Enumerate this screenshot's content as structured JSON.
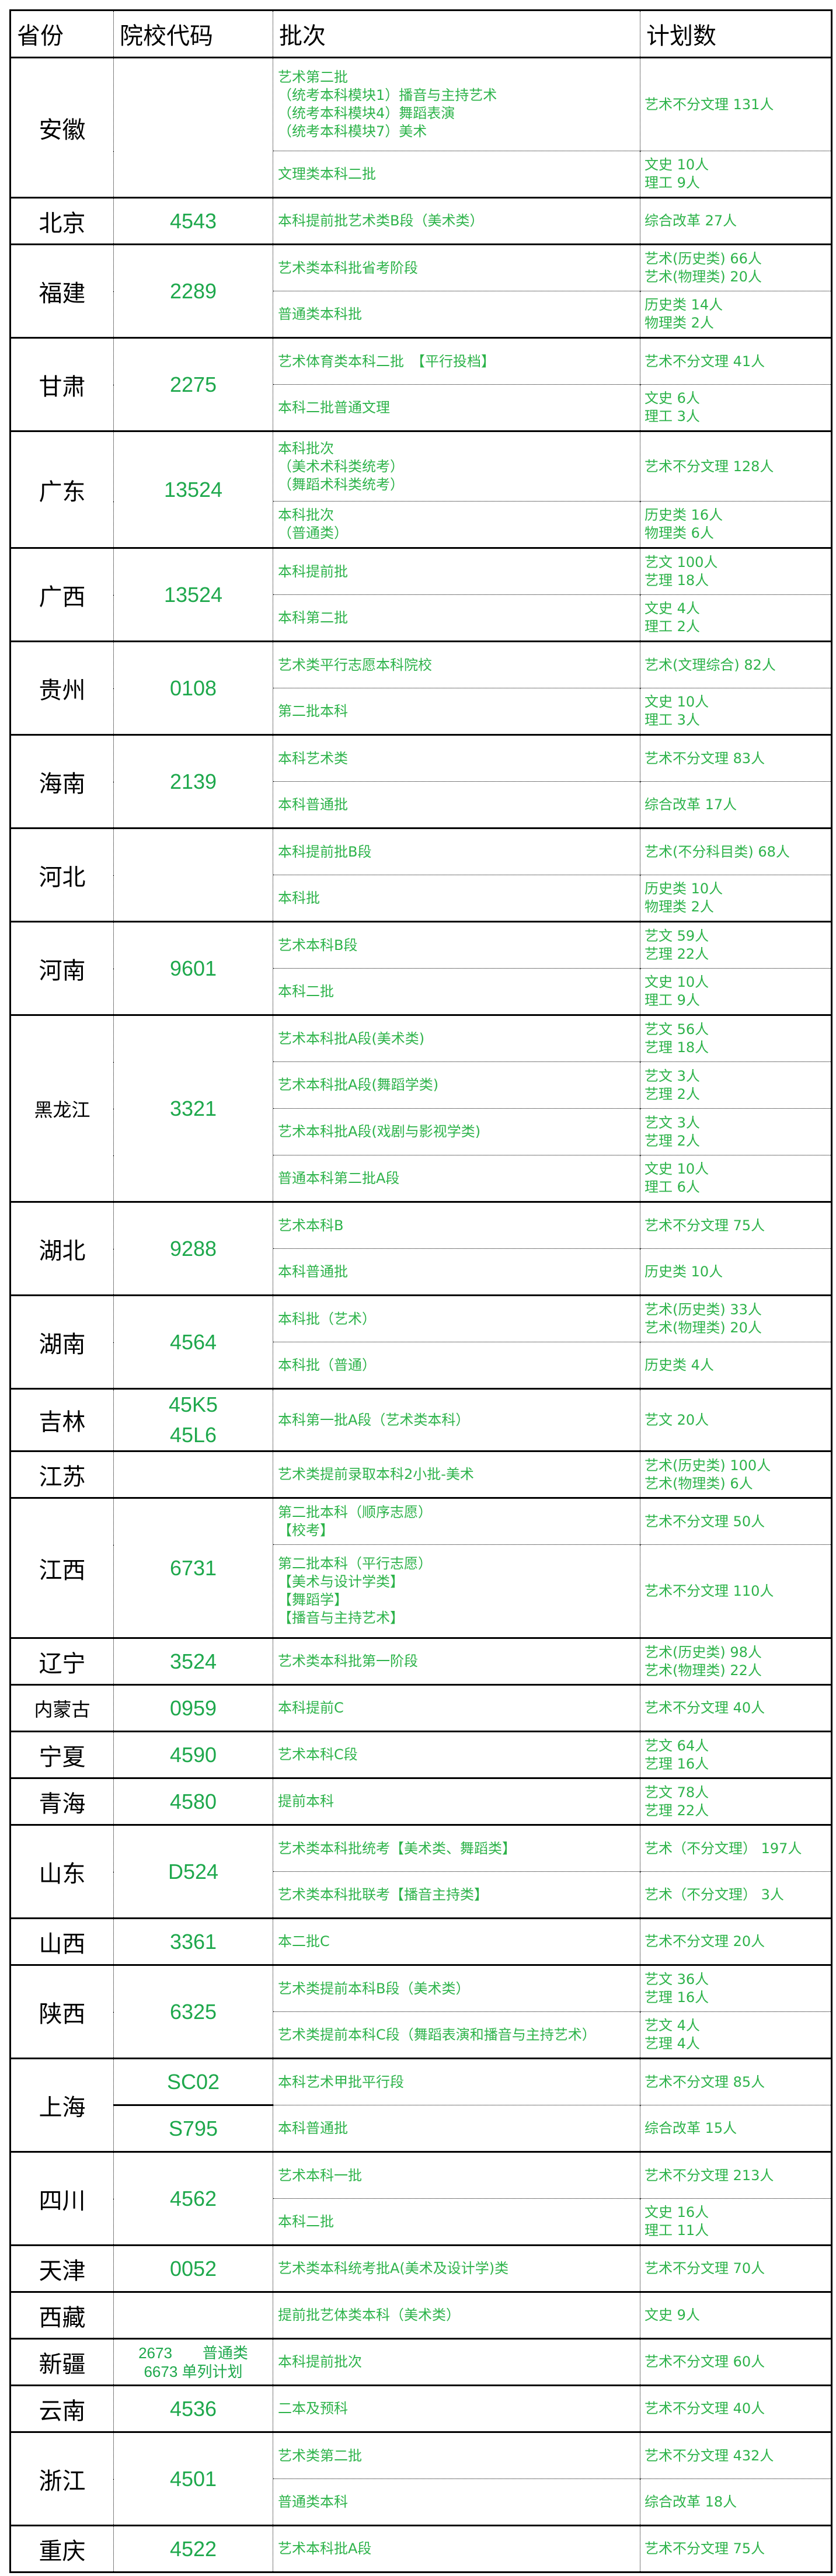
{
  "header": {
    "province": "省份",
    "code": "院校代码",
    "batch": "批次",
    "plan": "计划数"
  },
  "provinces": [
    {
      "name": "安徽",
      "codes": [],
      "rows": [
        {
          "batch": [
            "艺术第二批",
            "（统考本科模块1）播音与主持艺术",
            "（统考本科模块4）舞蹈表演",
            "（统考本科模块7）美术"
          ],
          "plan": [
            "艺术不分文理 131人"
          ]
        },
        {
          "batch": [
            "文理类本科二批"
          ],
          "plan": [
            "文史 10人",
            "理工 9人"
          ]
        }
      ]
    },
    {
      "name": "北京",
      "codes": [
        "4543"
      ],
      "rows": [
        {
          "batch": [
            "本科提前批艺术类B段（美术类）"
          ],
          "plan": [
            "综合改革 27人"
          ]
        }
      ]
    },
    {
      "name": "福建",
      "codes": [
        "2289"
      ],
      "rows": [
        {
          "batch": [
            "艺术类本科批省考阶段"
          ],
          "plan": [
            "艺术(历史类) 66人",
            "艺术(物理类) 20人"
          ]
        },
        {
          "batch": [
            "普通类本科批"
          ],
          "plan": [
            "历史类 14人",
            "物理类 2人"
          ]
        }
      ]
    },
    {
      "name": "甘肃",
      "codes": [
        "2275"
      ],
      "rows": [
        {
          "batch": [
            "艺术体育类本科二批　【平行投档】"
          ],
          "plan": [
            "艺术不分文理 41人"
          ]
        },
        {
          "batch": [
            "本科二批普通文理"
          ],
          "plan": [
            "文史 6人",
            "理工 3人"
          ]
        }
      ]
    },
    {
      "name": "广东",
      "codes": [
        "13524"
      ],
      "rows": [
        {
          "batch": [
            "本科批次",
            "（美术术科类统考）",
            "（舞蹈术科类统考）"
          ],
          "plan": [
            "艺术不分文理 128人"
          ]
        },
        {
          "batch": [
            "本科批次",
            "（普通类）"
          ],
          "plan": [
            "历史类 16人",
            "物理类 6人"
          ]
        }
      ]
    },
    {
      "name": "广西",
      "codes": [
        "13524"
      ],
      "rows": [
        {
          "batch": [
            "本科提前批"
          ],
          "plan": [
            "艺文 100人",
            "艺理 18人"
          ]
        },
        {
          "batch": [
            "本科第二批"
          ],
          "plan": [
            "文史 4人",
            "理工 2人"
          ]
        }
      ]
    },
    {
      "name": "贵州",
      "codes": [
        "0108"
      ],
      "rows": [
        {
          "batch": [
            "艺术类平行志愿本科院校"
          ],
          "plan": [
            "艺术(文理综合) 82人"
          ]
        },
        {
          "batch": [
            "第二批本科"
          ],
          "plan": [
            "文史 10人",
            "理工 3人"
          ]
        }
      ]
    },
    {
      "name": "海南",
      "codes": [
        "2139"
      ],
      "rows": [
        {
          "batch": [
            "本科艺术类"
          ],
          "plan": [
            "艺术不分文理 83人"
          ]
        },
        {
          "batch": [
            "本科普通批"
          ],
          "plan": [
            "综合改革 17人"
          ]
        }
      ]
    },
    {
      "name": "河北",
      "codes": [],
      "rows": [
        {
          "batch": [
            "本科提前批B段"
          ],
          "plan": [
            "艺术(不分科目类) 68人"
          ]
        },
        {
          "batch": [
            "本科批"
          ],
          "plan": [
            "历史类 10人",
            "物理类 2人"
          ]
        }
      ]
    },
    {
      "name": "河南",
      "codes": [
        "9601"
      ],
      "rows": [
        {
          "batch": [
            "艺术本科B段"
          ],
          "plan": [
            "艺文 59人",
            "艺理 22人"
          ]
        },
        {
          "batch": [
            "本科二批"
          ],
          "plan": [
            "文史 10人",
            "理工 9人"
          ]
        }
      ]
    },
    {
      "name": "黑龙江",
      "codes": [
        "3321"
      ],
      "rows": [
        {
          "batch": [
            "艺术本科批A段(美术类)"
          ],
          "plan": [
            "艺文 56人",
            "艺理 18人"
          ]
        },
        {
          "batch": [
            "艺术本科批A段(舞蹈学类)"
          ],
          "plan": [
            "艺文 3人",
            "艺理 2人"
          ]
        },
        {
          "batch": [
            "艺术本科批A段(戏剧与影视学类)"
          ],
          "plan": [
            "艺文 3人",
            "艺理 2人"
          ]
        },
        {
          "batch": [
            "普通本科第二批A段"
          ],
          "plan": [
            "文史 10人",
            "理工 6人"
          ]
        }
      ]
    },
    {
      "name": "湖北",
      "codes": [
        "9288"
      ],
      "rows": [
        {
          "batch": [
            "艺术本科B"
          ],
          "plan": [
            "艺术不分文理 75人"
          ]
        },
        {
          "batch": [
            "本科普通批"
          ],
          "plan": [
            "历史类 10人"
          ]
        }
      ]
    },
    {
      "name": "湖南",
      "codes": [
        "4564"
      ],
      "rows": [
        {
          "batch": [
            "本科批（艺术）"
          ],
          "plan": [
            "艺术(历史类) 33人",
            "艺术(物理类) 20人"
          ]
        },
        {
          "batch": [
            "本科批（普通）"
          ],
          "plan": [
            "历史类 4人"
          ]
        }
      ]
    },
    {
      "name": "吉林",
      "codes": [
        "45K5",
        "45L6"
      ],
      "rows": [
        {
          "batch": [
            "本科第一批A段（艺术类本科）"
          ],
          "plan": [
            "艺文 20人"
          ]
        }
      ]
    },
    {
      "name": "江苏",
      "codes": [],
      "rows": [
        {
          "batch": [
            "艺术类提前录取本科2小批-美术"
          ],
          "plan": [
            "艺术(历史类) 100人",
            "艺术(物理类) 6人"
          ]
        }
      ]
    },
    {
      "name": "江西",
      "codes": [
        "6731"
      ],
      "rows": [
        {
          "batch": [
            "第二批本科（顺序志愿）",
            "【校考】"
          ],
          "plan": [
            "艺术不分文理 50人"
          ]
        },
        {
          "batch": [
            "第二批本科（平行志愿）",
            "【美术与设计学类】",
            "【舞蹈学】",
            "【播音与主持艺术】"
          ],
          "plan": [
            "艺术不分文理 110人"
          ]
        }
      ]
    },
    {
      "name": "辽宁",
      "codes": [
        "3524"
      ],
      "rows": [
        {
          "batch": [
            "艺术类本科批第一阶段"
          ],
          "plan": [
            "艺术(历史类) 98人",
            "艺术(物理类) 22人"
          ]
        }
      ]
    },
    {
      "name": "内蒙古",
      "codes": [
        "0959"
      ],
      "rows": [
        {
          "batch": [
            "本科提前C"
          ],
          "plan": [
            "艺术不分文理 40人"
          ]
        }
      ]
    },
    {
      "name": "宁夏",
      "codes": [
        "4590"
      ],
      "rows": [
        {
          "batch": [
            "艺术本科C段"
          ],
          "plan": [
            "艺文 64人",
            "艺理 16人"
          ]
        }
      ]
    },
    {
      "name": "青海",
      "codes": [
        "4580"
      ],
      "rows": [
        {
          "batch": [
            "提前本科"
          ],
          "plan": [
            "艺文 78人",
            "艺理 22人"
          ]
        }
      ]
    },
    {
      "name": "山东",
      "codes": [
        "D524"
      ],
      "rows": [
        {
          "batch": [
            "艺术类本科批统考【美术类、舞蹈类】"
          ],
          "plan": [
            "艺术（不分文理） 197人"
          ]
        },
        {
          "batch": [
            "艺术类本科批联考【播音主持类】"
          ],
          "plan": [
            "艺术（不分文理） 3人"
          ]
        }
      ]
    },
    {
      "name": "山西",
      "codes": [
        "3361"
      ],
      "rows": [
        {
          "batch": [
            "本二批C"
          ],
          "plan": [
            "艺术不分文理 20人"
          ]
        }
      ]
    },
    {
      "name": "陕西",
      "codes": [
        "6325"
      ],
      "rows": [
        {
          "batch": [
            "艺术类提前本科B段（美术类）"
          ],
          "plan": [
            "艺文 36人",
            "艺理 16人"
          ]
        },
        {
          "batch": [
            "艺术类提前本科C段（舞蹈表演和播音与主持艺术）"
          ],
          "plan": [
            "艺文 4人",
            "艺理 4人"
          ]
        }
      ]
    },
    {
      "name": "上海",
      "codes": [],
      "rows": [
        {
          "code": "SC02",
          "batch": [
            "本科艺术甲批平行段"
          ],
          "plan": [
            "艺术不分文理 85人"
          ]
        },
        {
          "code": "S795",
          "batch": [
            "本科普通批"
          ],
          "plan": [
            "综合改革 15人"
          ]
        }
      ]
    },
    {
      "name": "四川",
      "codes": [
        "4562"
      ],
      "rows": [
        {
          "batch": [
            "艺术本科一批"
          ],
          "plan": [
            "艺术不分文理 213人"
          ]
        },
        {
          "batch": [
            "本科二批"
          ],
          "plan": [
            "文史 16人",
            "理工 11人"
          ]
        }
      ]
    },
    {
      "name": "天津",
      "codes": [
        "0052"
      ],
      "rows": [
        {
          "batch": [
            "艺术类本科统考批A(美术及设计学)类"
          ],
          "plan": [
            "艺术不分文理 70人"
          ]
        }
      ]
    },
    {
      "name": "西藏",
      "codes": [],
      "rows": [
        {
          "batch": [
            "提前批艺体类本科（美术类）"
          ],
          "plan": [
            "文史 9人"
          ]
        }
      ]
    },
    {
      "name": "新疆",
      "codes": [
        "2673　　普通类",
        "6673  单列计划"
      ],
      "rows": [
        {
          "batch": [
            "本科提前批次"
          ],
          "plan": [
            "艺术不分文理 60人"
          ]
        }
      ]
    },
    {
      "name": "云南",
      "codes": [
        "4536"
      ],
      "rows": [
        {
          "batch": [
            "二本及预科"
          ],
          "plan": [
            "艺术不分文理 40人"
          ]
        }
      ]
    },
    {
      "name": "浙江",
      "codes": [
        "4501"
      ],
      "rows": [
        {
          "batch": [
            "艺术类第二批"
          ],
          "plan": [
            "艺术不分文理 432人"
          ]
        },
        {
          "batch": [
            "普通类本科"
          ],
          "plan": [
            "综合改革 18人"
          ]
        }
      ]
    },
    {
      "name": "重庆",
      "codes": [
        "4522"
      ],
      "rows": [
        {
          "batch": [
            "艺术本科批A段"
          ],
          "plan": [
            "艺术不分文理 75人"
          ]
        }
      ]
    }
  ]
}
